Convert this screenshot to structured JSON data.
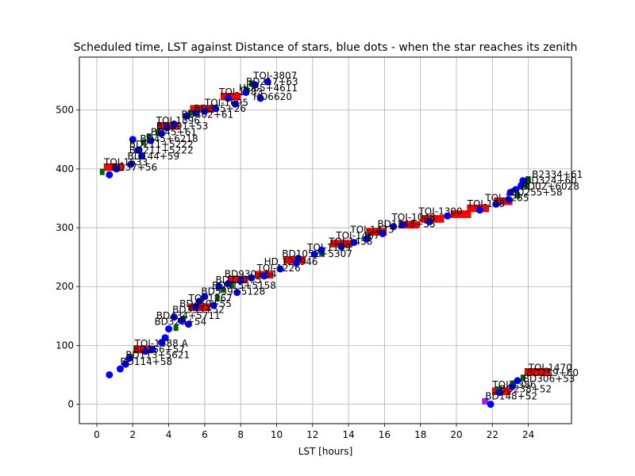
{
  "chart_data": {
    "type": "scatter",
    "title": "Scheduled time, LST against Distance of stars, blue dots - when the star reaches its zenith",
    "xlabel": "LST [hours]",
    "ylabel": "",
    "xlim": [
      -0.97,
      26.4
    ],
    "ylim": [
      -33,
      590
    ],
    "xticks": [
      0,
      2,
      4,
      6,
      8,
      10,
      12,
      14,
      16,
      18,
      20,
      22,
      24
    ],
    "yticks": [
      0,
      100,
      200,
      300,
      400,
      500
    ],
    "grid": true,
    "colors": {
      "zenith_dot": "#0000ff",
      "scheduled_block": "#ff0000",
      "green_marker": "#006400",
      "purple_marker": "#a020f0",
      "grid": "#b0b0b0"
    },
    "zenith_points": [
      {
        "x": 0.7,
        "y": 50
      },
      {
        "x": 1.3,
        "y": 60
      },
      {
        "x": 1.6,
        "y": 68
      },
      {
        "x": 1.8,
        "y": 78
      },
      {
        "x": 2.7,
        "y": 90
      },
      {
        "x": 3.1,
        "y": 93
      },
      {
        "x": 3.6,
        "y": 105
      },
      {
        "x": 3.8,
        "y": 113
      },
      {
        "x": 4.0,
        "y": 128
      },
      {
        "x": 4.3,
        "y": 148
      },
      {
        "x": 4.7,
        "y": 142
      },
      {
        "x": 5.1,
        "y": 136
      },
      {
        "x": 5.5,
        "y": 165
      },
      {
        "x": 5.7,
        "y": 175
      },
      {
        "x": 6.0,
        "y": 183
      },
      {
        "x": 6.5,
        "y": 168
      },
      {
        "x": 6.8,
        "y": 200
      },
      {
        "x": 7.3,
        "y": 205
      },
      {
        "x": 7.8,
        "y": 190
      },
      {
        "x": 8.0,
        "y": 210
      },
      {
        "x": 8.6,
        "y": 215
      },
      {
        "x": 9.3,
        "y": 218
      },
      {
        "x": 10.2,
        "y": 230
      },
      {
        "x": 11.1,
        "y": 240
      },
      {
        "x": 11.2,
        "y": 248
      },
      {
        "x": 12.1,
        "y": 255
      },
      {
        "x": 12.5,
        "y": 262
      },
      {
        "x": 13.6,
        "y": 268
      },
      {
        "x": 14.3,
        "y": 275
      },
      {
        "x": 15.0,
        "y": 281
      },
      {
        "x": 15.9,
        "y": 290
      },
      {
        "x": 16.5,
        "y": 302
      },
      {
        "x": 17.0,
        "y": 305
      },
      {
        "x": 18.5,
        "y": 310
      },
      {
        "x": 19.5,
        "y": 320
      },
      {
        "x": 21.3,
        "y": 330
      },
      {
        "x": 22.2,
        "y": 340
      },
      {
        "x": 22.9,
        "y": 348
      },
      {
        "x": 23.0,
        "y": 360
      },
      {
        "x": 23.3,
        "y": 365
      },
      {
        "x": 23.6,
        "y": 372
      },
      {
        "x": 23.7,
        "y": 380
      },
      {
        "x": 0.7,
        "y": 390
      },
      {
        "x": 1.1,
        "y": 400
      },
      {
        "x": 1.9,
        "y": 408
      },
      {
        "x": 2.0,
        "y": 450
      },
      {
        "x": 2.3,
        "y": 432
      },
      {
        "x": 2.5,
        "y": 422
      },
      {
        "x": 3.0,
        "y": 448
      },
      {
        "x": 3.6,
        "y": 460
      },
      {
        "x": 3.9,
        "y": 470
      },
      {
        "x": 4.3,
        "y": 476
      },
      {
        "x": 5.0,
        "y": 490
      },
      {
        "x": 5.5,
        "y": 495
      },
      {
        "x": 6.0,
        "y": 498
      },
      {
        "x": 6.6,
        "y": 503
      },
      {
        "x": 7.3,
        "y": 520
      },
      {
        "x": 7.7,
        "y": 510
      },
      {
        "x": 8.3,
        "y": 530
      },
      {
        "x": 8.8,
        "y": 543
      },
      {
        "x": 9.1,
        "y": 520
      },
      {
        "x": 9.5,
        "y": 548
      },
      {
        "x": 21.9,
        "y": 0
      },
      {
        "x": 22.4,
        "y": 20
      },
      {
        "x": 23.1,
        "y": 30
      },
      {
        "x": 23.4,
        "y": 40
      }
    ],
    "scheduled_blocks": [
      {
        "x_start": 2.1,
        "x_end": 3.1,
        "y": 93
      },
      {
        "x_start": 5.1,
        "x_end": 6.3,
        "y": 165
      },
      {
        "x_start": 7.3,
        "x_end": 8.4,
        "y": 212
      },
      {
        "x_start": 8.8,
        "x_end": 9.8,
        "y": 220
      },
      {
        "x_start": 10.4,
        "x_end": 11.6,
        "y": 245
      },
      {
        "x_start": 13.0,
        "x_end": 14.2,
        "y": 273
      },
      {
        "x_start": 15.0,
        "x_end": 16.1,
        "y": 293
      },
      {
        "x_start": 16.8,
        "x_end": 17.9,
        "y": 305
      },
      {
        "x_start": 18.0,
        "x_end": 19.3,
        "y": 315
      },
      {
        "x_start": 19.7,
        "x_end": 20.8,
        "y": 323
      },
      {
        "x_start": 20.6,
        "x_end": 21.8,
        "y": 333
      },
      {
        "x_start": 22.1,
        "x_end": 23.1,
        "y": 345
      },
      {
        "x_start": 0.4,
        "x_end": 1.5,
        "y": 403
      },
      {
        "x_start": 3.4,
        "x_end": 4.6,
        "y": 473
      },
      {
        "x_start": 5.2,
        "x_end": 6.5,
        "y": 502
      },
      {
        "x_start": 6.9,
        "x_end": 8.0,
        "y": 523
      },
      {
        "x_start": 22.0,
        "x_end": 23.0,
        "y": 22
      },
      {
        "x_start": 23.8,
        "x_end": 25.2,
        "y": 55
      }
    ],
    "green_markers": [
      {
        "x": 0.3,
        "y": 395
      },
      {
        "x": 1.9,
        "y": 80
      },
      {
        "x": 4.4,
        "y": 130
      },
      {
        "x": 4.8,
        "y": 145
      },
      {
        "x": 6.7,
        "y": 180
      },
      {
        "x": 7.0,
        "y": 195
      },
      {
        "x": 7.5,
        "y": 202
      },
      {
        "x": 12.5,
        "y": 256
      },
      {
        "x": 15.1,
        "y": 285
      },
      {
        "x": 23.4,
        "y": 355
      },
      {
        "x": 23.9,
        "y": 372
      },
      {
        "x": 24.0,
        "y": 382
      },
      {
        "x": 2.6,
        "y": 445
      },
      {
        "x": 2.9,
        "y": 455
      },
      {
        "x": 3.4,
        "y": 462
      },
      {
        "x": 5.2,
        "y": 495
      },
      {
        "x": 8.3,
        "y": 535
      },
      {
        "x": 8.6,
        "y": 545
      },
      {
        "x": 22.3,
        "y": 25
      },
      {
        "x": 23.1,
        "y": 35
      },
      {
        "x": 23.7,
        "y": 45
      }
    ],
    "purple_markers": [
      {
        "x": 21.6,
        "y": 5
      }
    ],
    "labels": [
      {
        "text": "TOI-3807",
        "x": 8.7,
        "y": 553
      },
      {
        "text": "BD217+63",
        "x": 8.3,
        "y": 543
      },
      {
        "text": "HD85+4611",
        "x": 7.9,
        "y": 532
      },
      {
        "text": "TOI-1783",
        "x": 6.8,
        "y": 525
      },
      {
        "text": "HD6620",
        "x": 8.7,
        "y": 517
      },
      {
        "text": "TOI-1695",
        "x": 6.0,
        "y": 507
      },
      {
        "text": "BD855+26",
        "x": 5.4,
        "y": 497
      },
      {
        "text": "BD402+61",
        "x": 4.7,
        "y": 487
      },
      {
        "text": "TOI-1896",
        "x": 3.3,
        "y": 477
      },
      {
        "text": "BD891+53",
        "x": 3.3,
        "y": 467
      },
      {
        "text": "BD45+61",
        "x": 3.0,
        "y": 457
      },
      {
        "text": "BD45+6218",
        "x": 2.4,
        "y": 446
      },
      {
        "text": "BD211+5222",
        "x": 1.8,
        "y": 436
      },
      {
        "text": "BD211+5222",
        "x": 1.8,
        "y": 426
      },
      {
        "text": "BD144+59",
        "x": 1.7,
        "y": 416
      },
      {
        "text": "TOI-1633",
        "x": 0.4,
        "y": 406
      },
      {
        "text": "BD37+56",
        "x": 0.8,
        "y": 397
      },
      {
        "text": "B2334+61",
        "x": 24.2,
        "y": 385
      },
      {
        "text": "BD324+60",
        "x": 23.8,
        "y": 375
      },
      {
        "text": "BD02+6028",
        "x": 23.6,
        "y": 365
      },
      {
        "text": "BD255+58",
        "x": 23.0,
        "y": 355
      },
      {
        "text": "TOI-1285",
        "x": 21.6,
        "y": 345
      },
      {
        "text": "TOI-148",
        "x": 20.6,
        "y": 335
      },
      {
        "text": "TOI-1300",
        "x": 17.9,
        "y": 322
      },
      {
        "text": "TOI-1048",
        "x": 16.4,
        "y": 312
      },
      {
        "text": "BD1248+55",
        "x": 15.6,
        "y": 301
      },
      {
        "text": "TOI-1473",
        "x": 14.1,
        "y": 291
      },
      {
        "text": "TOI-1467",
        "x": 13.3,
        "y": 281
      },
      {
        "text": "TOI-1458",
        "x": 12.9,
        "y": 271
      },
      {
        "text": "TOI-1199",
        "x": 11.7,
        "y": 261
      },
      {
        "text": "BD1052+5307",
        "x": 10.3,
        "y": 250
      },
      {
        "text": "HD 127946",
        "x": 9.3,
        "y": 237
      },
      {
        "text": "TOI-1226",
        "x": 8.9,
        "y": 226
      },
      {
        "text": "BD930+54",
        "x": 7.1,
        "y": 216
      },
      {
        "text": "BD730+5",
        "x": 6.6,
        "y": 206
      },
      {
        "text": "BD615+5158",
        "x": 6.4,
        "y": 196
      },
      {
        "text": "BD539+5128",
        "x": 5.8,
        "y": 186
      },
      {
        "text": "TOI-1267",
        "x": 5.1,
        "y": 175
      },
      {
        "text": "BD450+55",
        "x": 4.6,
        "y": 165
      },
      {
        "text": "BD333+52",
        "x": 4.2,
        "y": 155
      },
      {
        "text": "BD434+5711",
        "x": 3.3,
        "y": 145
      },
      {
        "text": "BD329+54",
        "x": 3.2,
        "y": 135
      },
      {
        "text": "TOI-1688 A",
        "x": 2.1,
        "y": 98
      },
      {
        "text": "BD156+57",
        "x": 2.0,
        "y": 88
      },
      {
        "text": "BD113+5621",
        "x": 1.6,
        "y": 78
      },
      {
        "text": "BD114+58",
        "x": 1.3,
        "y": 67
      },
      {
        "text": "TOI-1470",
        "x": 24.0,
        "y": 57
      },
      {
        "text": "BD259+60",
        "x": 23.9,
        "y": 48
      },
      {
        "text": "BD306+53",
        "x": 23.7,
        "y": 38
      },
      {
        "text": "TOI-1386",
        "x": 22.0,
        "y": 28
      },
      {
        "text": "BD238+52",
        "x": 22.4,
        "y": 20
      },
      {
        "text": "BD148+52",
        "x": 21.6,
        "y": 8
      }
    ]
  }
}
